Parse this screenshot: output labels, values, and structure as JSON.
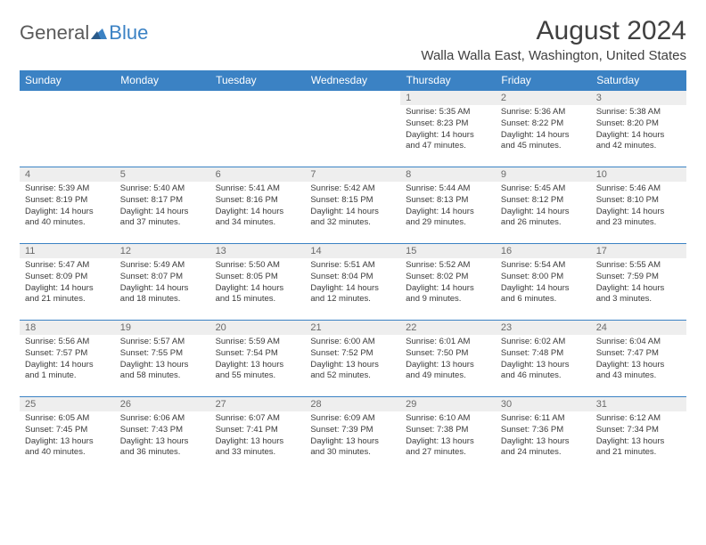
{
  "logo": {
    "text_general": "General",
    "text_blue": "Blue"
  },
  "title": {
    "month_year": "August 2024",
    "location": "Walla Walla East, Washington, United States"
  },
  "colors": {
    "header_bg": "#3b82c4",
    "header_text": "#ffffff",
    "daynum_bg": "#eeeeee",
    "border": "#3b82c4",
    "body_text": "#3a3a3a"
  },
  "day_headers": [
    "Sunday",
    "Monday",
    "Tuesday",
    "Wednesday",
    "Thursday",
    "Friday",
    "Saturday"
  ],
  "weeks": [
    [
      null,
      null,
      null,
      null,
      {
        "n": "1",
        "sr": "Sunrise: 5:35 AM",
        "ss": "Sunset: 8:23 PM",
        "dl": "Daylight: 14 hours and 47 minutes."
      },
      {
        "n": "2",
        "sr": "Sunrise: 5:36 AM",
        "ss": "Sunset: 8:22 PM",
        "dl": "Daylight: 14 hours and 45 minutes."
      },
      {
        "n": "3",
        "sr": "Sunrise: 5:38 AM",
        "ss": "Sunset: 8:20 PM",
        "dl": "Daylight: 14 hours and 42 minutes."
      }
    ],
    [
      {
        "n": "4",
        "sr": "Sunrise: 5:39 AM",
        "ss": "Sunset: 8:19 PM",
        "dl": "Daylight: 14 hours and 40 minutes."
      },
      {
        "n": "5",
        "sr": "Sunrise: 5:40 AM",
        "ss": "Sunset: 8:17 PM",
        "dl": "Daylight: 14 hours and 37 minutes."
      },
      {
        "n": "6",
        "sr": "Sunrise: 5:41 AM",
        "ss": "Sunset: 8:16 PM",
        "dl": "Daylight: 14 hours and 34 minutes."
      },
      {
        "n": "7",
        "sr": "Sunrise: 5:42 AM",
        "ss": "Sunset: 8:15 PM",
        "dl": "Daylight: 14 hours and 32 minutes."
      },
      {
        "n": "8",
        "sr": "Sunrise: 5:44 AM",
        "ss": "Sunset: 8:13 PM",
        "dl": "Daylight: 14 hours and 29 minutes."
      },
      {
        "n": "9",
        "sr": "Sunrise: 5:45 AM",
        "ss": "Sunset: 8:12 PM",
        "dl": "Daylight: 14 hours and 26 minutes."
      },
      {
        "n": "10",
        "sr": "Sunrise: 5:46 AM",
        "ss": "Sunset: 8:10 PM",
        "dl": "Daylight: 14 hours and 23 minutes."
      }
    ],
    [
      {
        "n": "11",
        "sr": "Sunrise: 5:47 AM",
        "ss": "Sunset: 8:09 PM",
        "dl": "Daylight: 14 hours and 21 minutes."
      },
      {
        "n": "12",
        "sr": "Sunrise: 5:49 AM",
        "ss": "Sunset: 8:07 PM",
        "dl": "Daylight: 14 hours and 18 minutes."
      },
      {
        "n": "13",
        "sr": "Sunrise: 5:50 AM",
        "ss": "Sunset: 8:05 PM",
        "dl": "Daylight: 14 hours and 15 minutes."
      },
      {
        "n": "14",
        "sr": "Sunrise: 5:51 AM",
        "ss": "Sunset: 8:04 PM",
        "dl": "Daylight: 14 hours and 12 minutes."
      },
      {
        "n": "15",
        "sr": "Sunrise: 5:52 AM",
        "ss": "Sunset: 8:02 PM",
        "dl": "Daylight: 14 hours and 9 minutes."
      },
      {
        "n": "16",
        "sr": "Sunrise: 5:54 AM",
        "ss": "Sunset: 8:00 PM",
        "dl": "Daylight: 14 hours and 6 minutes."
      },
      {
        "n": "17",
        "sr": "Sunrise: 5:55 AM",
        "ss": "Sunset: 7:59 PM",
        "dl": "Daylight: 14 hours and 3 minutes."
      }
    ],
    [
      {
        "n": "18",
        "sr": "Sunrise: 5:56 AM",
        "ss": "Sunset: 7:57 PM",
        "dl": "Daylight: 14 hours and 1 minute."
      },
      {
        "n": "19",
        "sr": "Sunrise: 5:57 AM",
        "ss": "Sunset: 7:55 PM",
        "dl": "Daylight: 13 hours and 58 minutes."
      },
      {
        "n": "20",
        "sr": "Sunrise: 5:59 AM",
        "ss": "Sunset: 7:54 PM",
        "dl": "Daylight: 13 hours and 55 minutes."
      },
      {
        "n": "21",
        "sr": "Sunrise: 6:00 AM",
        "ss": "Sunset: 7:52 PM",
        "dl": "Daylight: 13 hours and 52 minutes."
      },
      {
        "n": "22",
        "sr": "Sunrise: 6:01 AM",
        "ss": "Sunset: 7:50 PM",
        "dl": "Daylight: 13 hours and 49 minutes."
      },
      {
        "n": "23",
        "sr": "Sunrise: 6:02 AM",
        "ss": "Sunset: 7:48 PM",
        "dl": "Daylight: 13 hours and 46 minutes."
      },
      {
        "n": "24",
        "sr": "Sunrise: 6:04 AM",
        "ss": "Sunset: 7:47 PM",
        "dl": "Daylight: 13 hours and 43 minutes."
      }
    ],
    [
      {
        "n": "25",
        "sr": "Sunrise: 6:05 AM",
        "ss": "Sunset: 7:45 PM",
        "dl": "Daylight: 13 hours and 40 minutes."
      },
      {
        "n": "26",
        "sr": "Sunrise: 6:06 AM",
        "ss": "Sunset: 7:43 PM",
        "dl": "Daylight: 13 hours and 36 minutes."
      },
      {
        "n": "27",
        "sr": "Sunrise: 6:07 AM",
        "ss": "Sunset: 7:41 PM",
        "dl": "Daylight: 13 hours and 33 minutes."
      },
      {
        "n": "28",
        "sr": "Sunrise: 6:09 AM",
        "ss": "Sunset: 7:39 PM",
        "dl": "Daylight: 13 hours and 30 minutes."
      },
      {
        "n": "29",
        "sr": "Sunrise: 6:10 AM",
        "ss": "Sunset: 7:38 PM",
        "dl": "Daylight: 13 hours and 27 minutes."
      },
      {
        "n": "30",
        "sr": "Sunrise: 6:11 AM",
        "ss": "Sunset: 7:36 PM",
        "dl": "Daylight: 13 hours and 24 minutes."
      },
      {
        "n": "31",
        "sr": "Sunrise: 6:12 AM",
        "ss": "Sunset: 7:34 PM",
        "dl": "Daylight: 13 hours and 21 minutes."
      }
    ]
  ]
}
